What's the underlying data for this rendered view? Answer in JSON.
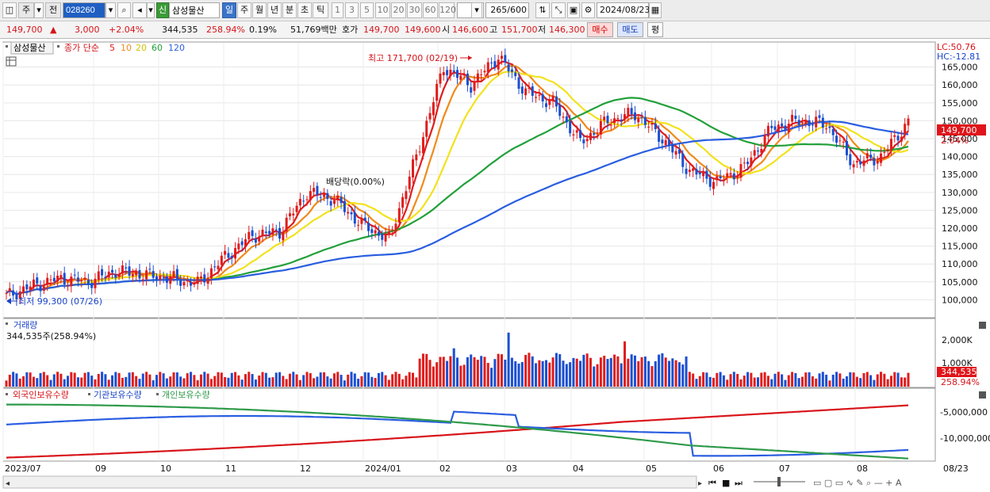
{
  "toolbar": {
    "period_options": [
      "주",
      "전"
    ],
    "code": "028260",
    "name": "삼성물산",
    "badge": "신",
    "tabs": [
      "일",
      "주",
      "월",
      "년",
      "분",
      "초",
      "틱"
    ],
    "active_tab": "일",
    "interval_buttons": [
      "1",
      "3",
      "5",
      "10",
      "20",
      "30",
      "60",
      "120"
    ],
    "count": "265",
    "count_total": "/600",
    "date": "2024/08/23"
  },
  "quote": {
    "price": "149,700",
    "arrow": "▲",
    "change": "3,000",
    "change_pct": "+2.04%",
    "volume": "344,535",
    "volume_ratio": "258.94%",
    "turnover": "0.19%",
    "amount": "51,769백만",
    "bid_label": "호가",
    "ask": "149,700",
    "bid": "149,600",
    "open_label": "시",
    "open": "146,600",
    "high_label": "고",
    "high": "151,700",
    "low_label": "저",
    "low": "146,300",
    "buy_button": "매수",
    "sell_button": "매도",
    "eval_button": "평"
  },
  "price_panel": {
    "stock_label": "삼성물산",
    "ma_label": "종가 단순",
    "ma_periods": [
      "5",
      "10",
      "20",
      "60",
      "120"
    ],
    "ma_colors": [
      "#e01c1c",
      "#f08a1c",
      "#f2e21c",
      "#22a03a",
      "#2a5ee0"
    ],
    "lc": "LC:50.76",
    "hc": "HC:-12.81",
    "high_annotation": "최고 171,700 (02/19)",
    "low_annotation": "최저 99,300 (07/26)",
    "dividend_annotation": "배당락(0.00%)",
    "current_price_tag": "149,700",
    "current_pct_tag": "2.04%",
    "y_ticks": [
      "165,000",
      "160,000",
      "155,000",
      "150,000",
      "145,000",
      "140,000",
      "135,000",
      "130,000",
      "125,000",
      "120,000",
      "115,000",
      "110,000",
      "105,000",
      "100,000"
    ]
  },
  "volume_panel": {
    "title": "거래량",
    "value": "344,535주(258.94%)",
    "y_ticks": [
      "2,000K",
      "1,000K"
    ],
    "current_tag": "344,535",
    "current_pct_tag": "258.94%"
  },
  "holdings_panel": {
    "series": [
      "외국인보유수량",
      "기관보유수량",
      "개인보유수량"
    ],
    "series_colors": [
      "#d8141a",
      "#2a5ee0",
      "#2e9a4a"
    ],
    "y_ticks": [
      "-5,000,000",
      "-10,000,000"
    ]
  },
  "x_axis": {
    "labels": [
      "2023/07",
      "09",
      "10",
      "11",
      "12",
      "2024/01",
      "02",
      "03",
      "04",
      "05",
      "06",
      "07",
      "08",
      "08/23"
    ]
  },
  "chart_data": {
    "type": "candlestick",
    "x_labels": [
      "2023/07",
      "09",
      "10",
      "11",
      "12",
      "2024/01",
      "02",
      "03",
      "04",
      "05",
      "06",
      "07",
      "08"
    ],
    "close": [
      101000,
      104000,
      106000,
      105000,
      108000,
      107000,
      106000,
      104500,
      112000,
      118000,
      119000,
      130000,
      128000,
      121000,
      117000,
      140000,
      165000,
      160000,
      168000,
      158000,
      155000,
      144000,
      150000,
      152000,
      145000,
      136000,
      133000,
      137000,
      148000,
      150000,
      149000,
      138000,
      140000,
      149700
    ],
    "ylim": [
      95000,
      172000
    ],
    "annotations": [
      "최고 171,700 (02/19)",
      "최저 99,300 (07/26)",
      "배당락(0.00%)"
    ]
  }
}
